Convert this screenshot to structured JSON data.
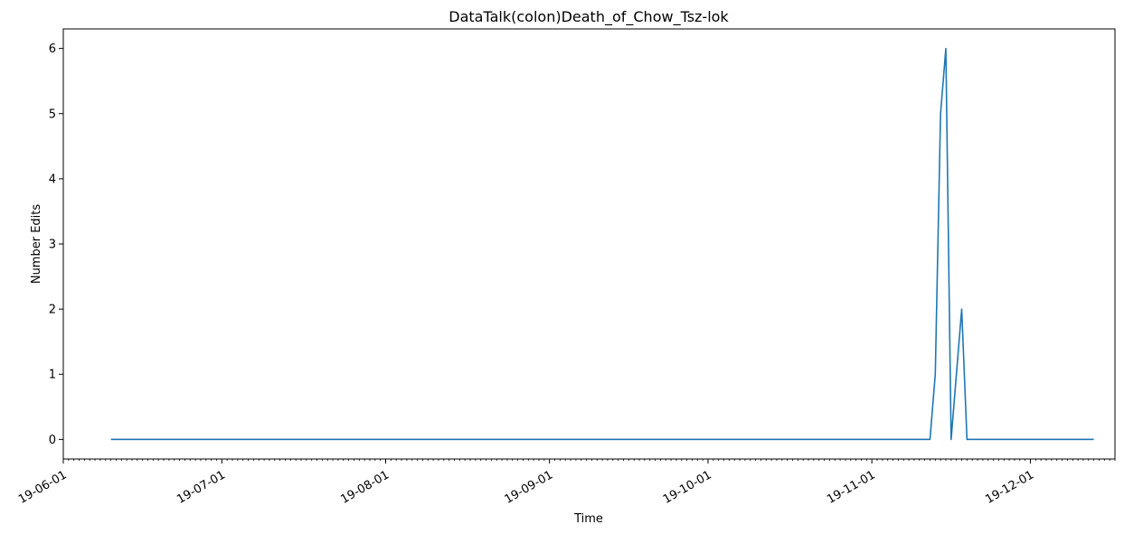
{
  "chart_data": {
    "type": "line",
    "title": "DataTalk(colon)Death_of_Chow_Tsz-lok",
    "xlabel": "Time",
    "ylabel": "Number Edits",
    "x_range": [
      "2019-06-01",
      "2019-12-17"
    ],
    "ylim": [
      -0.3,
      6.3
    ],
    "grid": false,
    "y_ticks": [
      0,
      1,
      2,
      3,
      4,
      5,
      6
    ],
    "x_ticks": [
      {
        "date": "2019-06-01",
        "label": "19-06-01"
      },
      {
        "date": "2019-07-01",
        "label": "19-07-01"
      },
      {
        "date": "2019-08-01",
        "label": "19-08-01"
      },
      {
        "date": "2019-09-01",
        "label": "19-09-01"
      },
      {
        "date": "2019-10-01",
        "label": "19-10-01"
      },
      {
        "date": "2019-11-01",
        "label": "19-11-01"
      },
      {
        "date": "2019-12-01",
        "label": "19-12-01"
      }
    ],
    "series": [
      {
        "color": "#1f77b4",
        "points": [
          {
            "x": "2019-06-10",
            "y": 0
          },
          {
            "x": "2019-11-12",
            "y": 0
          },
          {
            "x": "2019-11-13",
            "y": 1
          },
          {
            "x": "2019-11-14",
            "y": 5
          },
          {
            "x": "2019-11-15",
            "y": 6
          },
          {
            "x": "2019-11-16",
            "y": 0
          },
          {
            "x": "2019-11-17",
            "y": 1
          },
          {
            "x": "2019-11-18",
            "y": 2
          },
          {
            "x": "2019-11-19",
            "y": 0
          },
          {
            "x": "2019-12-13",
            "y": 0
          }
        ]
      }
    ]
  }
}
